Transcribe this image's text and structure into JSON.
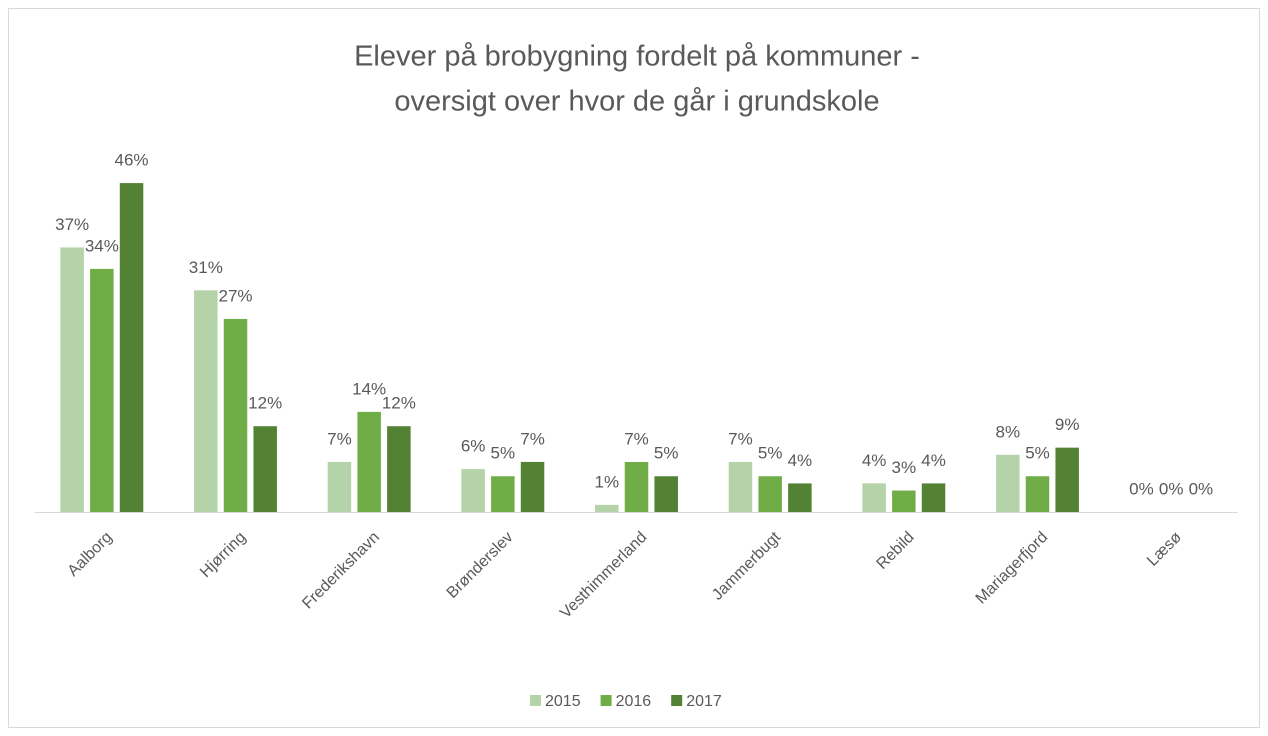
{
  "chart_data": {
    "type": "bar",
    "title": [
      "Elever på brobygning fordelt på kommuner -",
      "oversigt over hvor de går i grundskole"
    ],
    "categories": [
      "Aalborg",
      "Hjørring",
      "Frederikshavn",
      "Brønderslev",
      "Vesthimmerland",
      "Jammerbugt",
      "Rebild",
      "Mariagerfjord",
      "Læsø"
    ],
    "series": [
      {
        "name": "2015",
        "color": "#b5d3a8",
        "values": [
          37,
          31,
          7,
          6,
          1,
          7,
          4,
          8,
          0
        ],
        "value_labels": [
          "37%",
          "31%",
          "7%",
          "6%",
          "1%",
          "7%",
          "4%",
          "8%",
          "0%"
        ]
      },
      {
        "name": "2016",
        "color": "#70ad47",
        "values": [
          34,
          27,
          14,
          5,
          7,
          5,
          3,
          5,
          0
        ],
        "value_labels": [
          "34%",
          "27%",
          "14%",
          "5%",
          "7%",
          "5%",
          "3%",
          "5%",
          "0%"
        ]
      },
      {
        "name": "2017",
        "color": "#548235",
        "values": [
          46,
          12,
          12,
          7,
          5,
          4,
          4,
          9,
          0
        ],
        "value_labels": [
          "46%",
          "12%",
          "12%",
          "7%",
          "5%",
          "4%",
          "4%",
          "9%",
          "0%"
        ]
      }
    ],
    "legend": "bottom"
  }
}
